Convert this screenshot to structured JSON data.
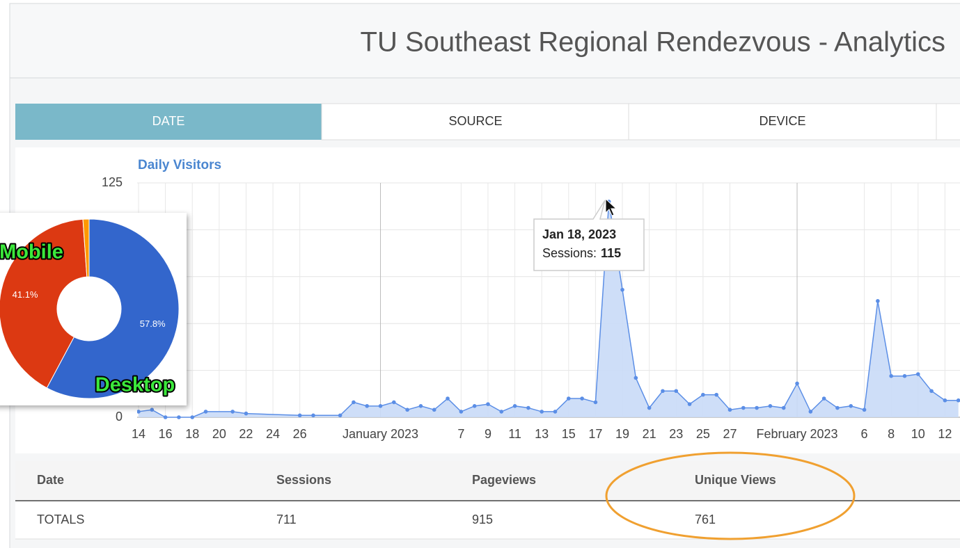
{
  "header": {
    "title": "TU Southeast Regional Rendezvous - Analytics"
  },
  "tabs": [
    "DATE",
    "SOURCE",
    "DEVICE"
  ],
  "chart_data": [
    {
      "type": "line",
      "title": "Daily Visitors",
      "x": [
        "2022-12-14",
        "2022-12-15",
        "2022-12-16",
        "2022-12-17",
        "2022-12-18",
        "2022-12-19",
        "2022-12-21",
        "2022-12-22",
        "2022-12-26",
        "2022-12-27",
        "2022-12-29",
        "2022-12-30",
        "2022-12-31",
        "2023-01-01",
        "2023-01-02",
        "2023-01-03",
        "2023-01-04",
        "2023-01-05",
        "2023-01-06",
        "2023-01-07",
        "2023-01-08",
        "2023-01-09",
        "2023-01-10",
        "2023-01-11",
        "2023-01-12",
        "2023-01-13",
        "2023-01-14",
        "2023-01-15",
        "2023-01-16",
        "2023-01-17",
        "2023-01-18",
        "2023-01-19",
        "2023-01-20",
        "2023-01-21",
        "2023-01-22",
        "2023-01-23",
        "2023-01-24",
        "2023-01-25",
        "2023-01-26",
        "2023-01-27",
        "2023-01-28",
        "2023-01-29",
        "2023-01-30",
        "2023-01-31",
        "2023-02-01",
        "2023-02-02",
        "2023-02-03",
        "2023-02-04",
        "2023-02-05",
        "2023-02-06",
        "2023-02-07",
        "2023-02-08",
        "2023-02-09",
        "2023-02-10",
        "2023-02-11",
        "2023-02-12",
        "2023-02-13"
      ],
      "values": [
        3,
        4,
        0,
        0,
        0,
        3,
        3,
        2,
        1,
        1,
        1,
        8,
        6,
        6,
        8,
        4,
        6,
        4,
        10,
        3,
        6,
        7,
        3,
        6,
        5,
        3,
        3,
        10,
        10,
        8,
        115,
        68,
        21,
        5,
        14,
        14,
        7,
        12,
        12,
        4,
        5,
        5,
        6,
        5,
        18,
        3,
        10,
        5,
        6,
        4,
        62,
        22,
        22,
        23,
        14,
        9,
        9
      ],
      "color": "#5b8ee6",
      "fill": "#c9daf7",
      "xlim": [
        "2022-12-14",
        "2023-02-14"
      ],
      "xticks": [
        {
          "value": "2022-12-14",
          "label": "14"
        },
        {
          "value": "2022-12-16",
          "label": "16"
        },
        {
          "value": "2022-12-18",
          "label": "18"
        },
        {
          "value": "2022-12-20",
          "label": "20"
        },
        {
          "value": "2022-12-22",
          "label": "22"
        },
        {
          "value": "2022-12-24",
          "label": "24"
        },
        {
          "value": "2022-12-26",
          "label": "26"
        },
        {
          "value": "2023-01-01",
          "label": "January 2023"
        },
        {
          "value": "2023-01-07",
          "label": "7"
        },
        {
          "value": "2023-01-09",
          "label": "9"
        },
        {
          "value": "2023-01-11",
          "label": "11"
        },
        {
          "value": "2023-01-13",
          "label": "13"
        },
        {
          "value": "2023-01-15",
          "label": "15"
        },
        {
          "value": "2023-01-17",
          "label": "17"
        },
        {
          "value": "2023-01-19",
          "label": "19"
        },
        {
          "value": "2023-01-21",
          "label": "21"
        },
        {
          "value": "2023-01-23",
          "label": "23"
        },
        {
          "value": "2023-01-25",
          "label": "25"
        },
        {
          "value": "2023-01-27",
          "label": "27"
        },
        {
          "value": "2023-02-01",
          "label": "February 2023"
        },
        {
          "value": "2023-02-06",
          "label": "6"
        },
        {
          "value": "2023-02-08",
          "label": "8"
        },
        {
          "value": "2023-02-10",
          "label": "10"
        },
        {
          "value": "2023-02-12",
          "label": "12"
        }
      ],
      "ylim": [
        0,
        125
      ],
      "yticks": [
        0,
        125
      ],
      "ygrid": [
        0,
        25,
        50,
        75,
        100,
        125
      ],
      "tooltip": {
        "title": "Jan 18, 2023",
        "label": "Sessions:"
      }
    },
    {
      "type": "pie",
      "categories": [
        "Desktop",
        "Mobile",
        null
      ],
      "values": [
        57.8,
        41.1,
        1.1
      ],
      "value_labels": [
        "57.8%",
        "41.1%",
        null
      ],
      "colors": [
        "#3366cc",
        "#dc3912",
        "#ff9900"
      ],
      "donut": true
    }
  ],
  "table": {
    "columns": [
      "Date",
      "Sessions",
      "Pageviews",
      "Unique Views"
    ],
    "rows": [
      [
        "TOTALS",
        711,
        915,
        761
      ]
    ]
  }
}
